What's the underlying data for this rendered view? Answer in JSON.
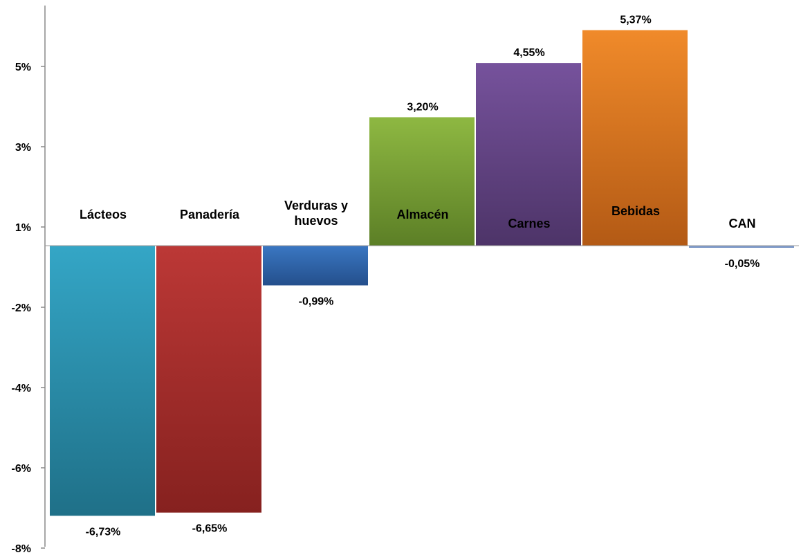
{
  "chart_data": {
    "type": "bar",
    "categories": [
      "Lácteos",
      "Panadería",
      "Verduras y huevos",
      "Almacén",
      "Carnes",
      "Bebidas",
      "CAN"
    ],
    "category_lines": [
      [
        "Lácteos"
      ],
      [
        "Panadería"
      ],
      [
        "Verduras y",
        "huevos"
      ],
      [
        "Almacén"
      ],
      [
        "Carnes"
      ],
      [
        "Bebidas"
      ],
      [
        "CAN"
      ]
    ],
    "values": [
      -6.73,
      -6.65,
      -0.99,
      3.2,
      4.55,
      5.37,
      -0.05
    ],
    "value_labels": [
      "-6,73%",
      "-6,65%",
      "-0,99%",
      "3,20%",
      "4,55%",
      "5,37%",
      "-0,05%"
    ],
    "y_ticks": [
      5,
      3,
      1,
      -2,
      -4,
      -6,
      -8
    ],
    "y_tick_labels": [
      "5%",
      "3%",
      "1%",
      "-2%",
      "-4%",
      "-6%",
      "-8%"
    ],
    "ylim": [
      -8,
      6
    ],
    "grid": false,
    "legend": "none",
    "colors": [
      [
        "#34a6c6",
        "#1f7088"
      ],
      [
        "#bc3836",
        "#86211f"
      ],
      [
        "#3a77c2",
        "#244f8c"
      ],
      [
        "#8eb842",
        "#5c7f26"
      ],
      [
        "#76529c",
        "#4d3468"
      ],
      [
        "#f08a2a",
        "#b35a15"
      ],
      [
        "#8ba8d8",
        "#6a89be"
      ]
    ]
  }
}
